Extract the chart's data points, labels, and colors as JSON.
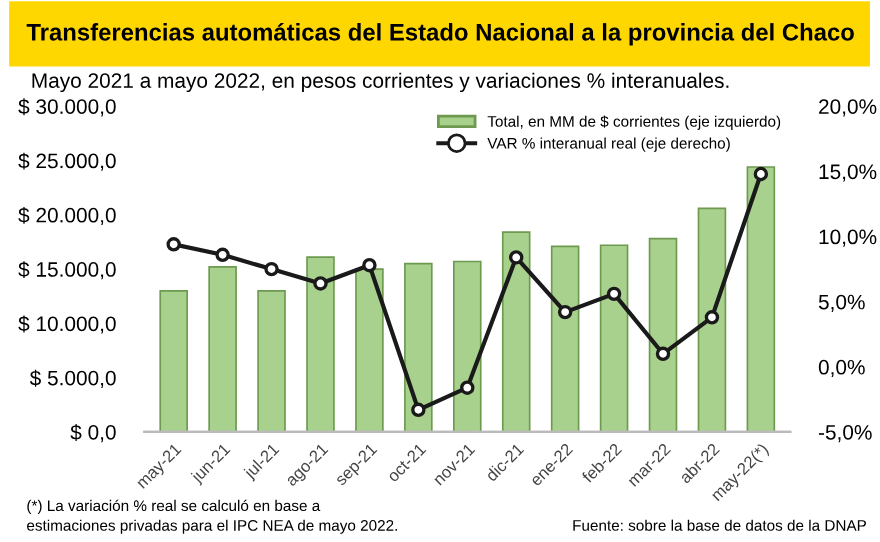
{
  "chart_data": {
    "type": "bar",
    "title": "Transferencias automáticas del Estado Nacional a la provincia del Chaco",
    "subtitle": "Mayo 2021 a mayo 2022, en pesos corrientes y variaciones % interanuales.",
    "categories": [
      "may-21",
      "jun-21",
      "jul-21",
      "ago-21",
      "sep-21",
      "oct-21",
      "nov-21",
      "dic-21",
      "ene-22",
      "feb-22",
      "mar-22",
      "abr-22",
      "may-22(*)"
    ],
    "series": [
      {
        "name": "Total, en MM de $ corrientes (eje izquierdo)",
        "color": "#a9d18e",
        "values": [
          13000,
          15200,
          13000,
          16100,
          15000,
          15500,
          15700,
          18400,
          17100,
          17200,
          17800,
          20600,
          24400
        ]
      },
      {
        "name": "VAR % interanual real (eje derecho)",
        "type": "line",
        "axis": "y2",
        "color": "#1a1a1a",
        "marker": "circle",
        "values": [
          9.4,
          8.6,
          7.5,
          6.4,
          7.8,
          -3.3,
          -1.6,
          8.4,
          4.2,
          5.6,
          1.0,
          3.8,
          14.8
        ]
      }
    ],
    "ylim": [
      0,
      30000
    ],
    "yticks": [
      {
        "value": 0,
        "label": "$ 0,0"
      },
      {
        "value": 5000,
        "label": "$ 5.000,0"
      },
      {
        "value": 10000,
        "label": "$ 10.000,0"
      },
      {
        "value": 15000,
        "label": "$ 15.000,0"
      },
      {
        "value": 20000,
        "label": "$ 20.000,0"
      },
      {
        "value": 25000,
        "label": "$ 25.000,0"
      },
      {
        "value": 30000,
        "label": "$ 30.000,0"
      }
    ],
    "y2lim": [
      -5,
      20
    ],
    "y2ticks": [
      {
        "value": -5,
        "label": "-5,0%"
      },
      {
        "value": 0,
        "label": "0,0%"
      },
      {
        "value": 5,
        "label": "5,0%"
      },
      {
        "value": 10,
        "label": "10,0%"
      },
      {
        "value": 15,
        "label": "15,0%"
      },
      {
        "value": 20,
        "label": "20,0%"
      }
    ],
    "legend": "top right",
    "grid": false,
    "annotations": [
      "(*) La variación % real se calculó en base a\nestimaciones privadas para el IPC NEA de mayo 2022.",
      "Fuente: sobre la base de datos de la DNAP"
    ]
  }
}
